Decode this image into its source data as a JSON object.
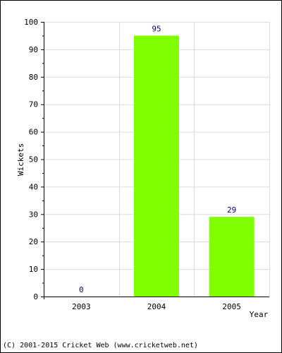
{
  "footer": {
    "copyright": "(C) 2001-2015 Cricket Web (www.cricketweb.net)"
  },
  "chart_data": {
    "type": "bar",
    "title": "",
    "xlabel": "Year",
    "ylabel": "Wickets",
    "categories": [
      "2003",
      "2004",
      "2005"
    ],
    "series": [
      {
        "values": [
          0,
          95,
          29
        ],
        "color": "#80ff00",
        "data_labels": [
          "0",
          "95",
          "29"
        ]
      }
    ],
    "ylim": [
      0,
      100
    ],
    "yticks": [
      0,
      10,
      20,
      30,
      40,
      50,
      60,
      70,
      80,
      90,
      100
    ],
    "grid": true,
    "legend": "none",
    "colors": {
      "bar": "#80ff00",
      "data_label": "#000080",
      "grid": "#dcdcdc",
      "axis": "#000000"
    }
  }
}
